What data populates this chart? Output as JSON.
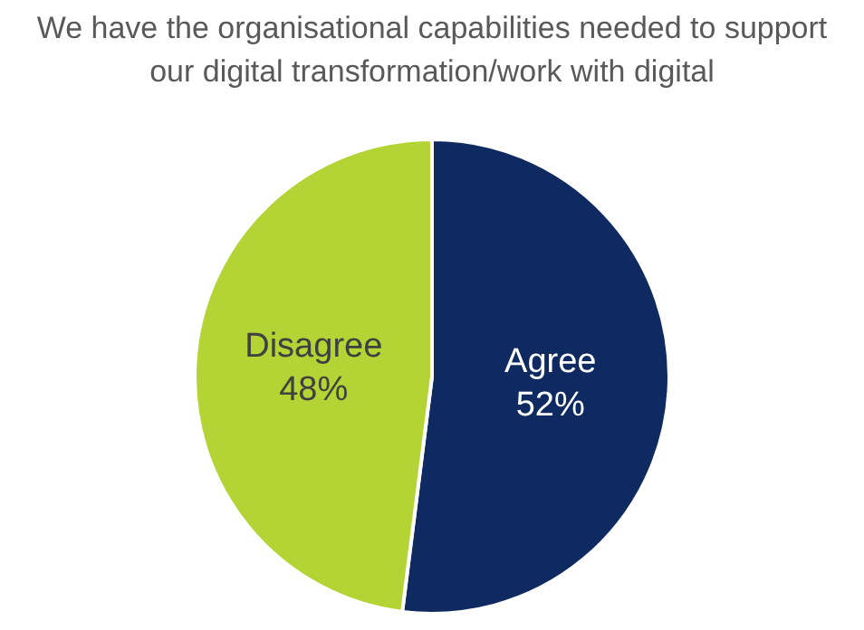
{
  "chart_data": {
    "type": "pie",
    "title": "We have the organisational capabilities needed to support our digital transformation/work with digital",
    "categories": [
      "Agree",
      "Disagree"
    ],
    "values": [
      52,
      48
    ],
    "colors": [
      "#0e2a60",
      "#b4d335"
    ],
    "value_labels": [
      "52%",
      "48%"
    ],
    "legend": false
  }
}
